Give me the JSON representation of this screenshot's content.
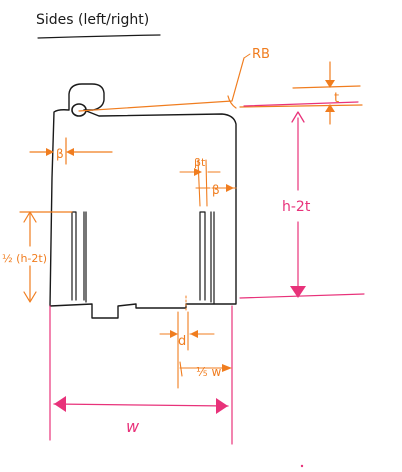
{
  "title": "Sides (left/right)",
  "labels": {
    "corner_radius": "RB",
    "thickness_top": "t",
    "height_right": "h-2t",
    "beta_left": "β",
    "slot_width_label": "βt",
    "beta_right": "β",
    "slot_height": "½ (h-2t)",
    "tab_d": "d",
    "tab_fraction": "⅕ w",
    "width_w": "w"
  },
  "colors": {
    "ink": "#1a1a1a",
    "orange": "#f07d1f",
    "pink": "#e8327a"
  }
}
